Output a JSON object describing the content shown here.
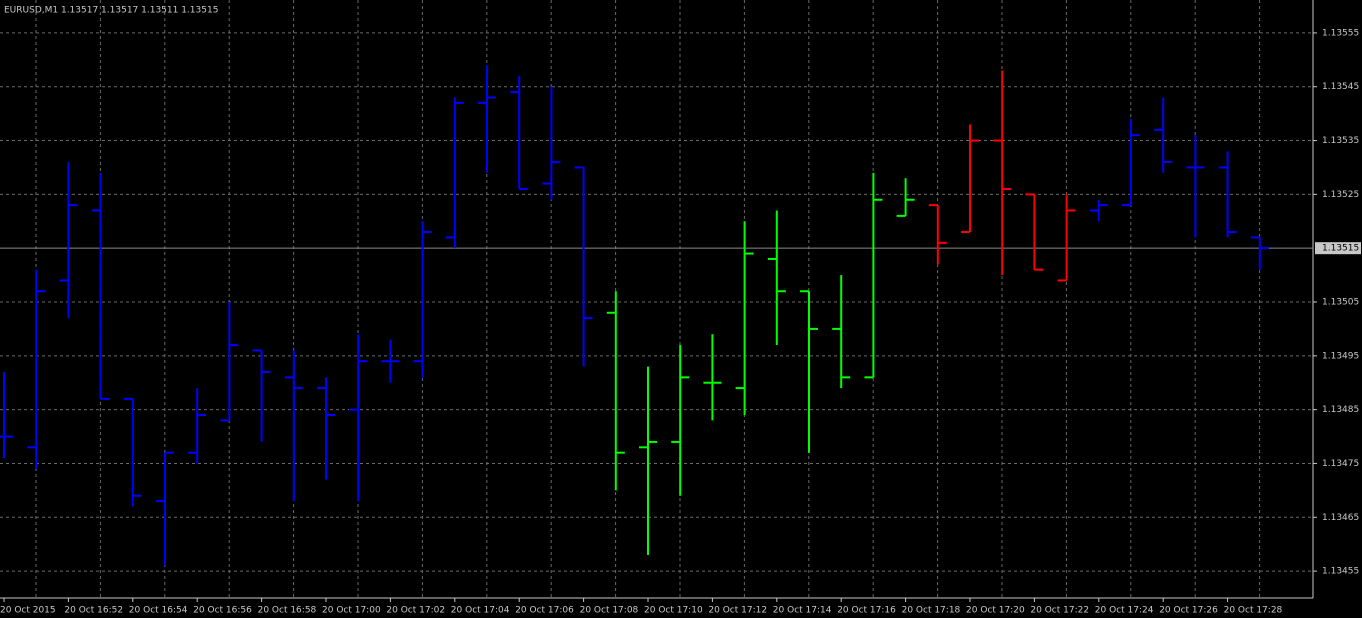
{
  "chart_data": {
    "type": "ohlc",
    "title": "EURUSD,M1  1.13517 1.13517 1.13511 1.13515",
    "categories": [
      "20 Oct 2015",
      null,
      "20 Oct 16:52",
      null,
      "20 Oct 16:54",
      null,
      "20 Oct 16:56",
      null,
      "20 Oct 16:58",
      null,
      "20 Oct 17:00",
      null,
      "20 Oct 17:02",
      null,
      "20 Oct 17:04",
      null,
      "20 Oct 17:06",
      null,
      "20 Oct 17:08",
      null,
      "20 Oct 17:10",
      null,
      "20 Oct 17:12",
      null,
      "20 Oct 17:14",
      null,
      "20 Oct 17:16",
      null,
      "20 Oct 17:18",
      null,
      "20 Oct 17:20",
      null,
      "20 Oct 17:22",
      null,
      "20 Oct 17:24",
      null,
      "20 Oct 17:26",
      null,
      "20 Oct 17:28",
      null
    ],
    "open": [
      1.1348,
      1.13478,
      1.13509,
      1.13522,
      1.13487,
      1.13468,
      1.13477,
      1.13483,
      1.13496,
      1.13491,
      1.13489,
      1.13485,
      1.13494,
      1.13494,
      1.13517,
      1.13542,
      1.13544,
      1.13527,
      1.1353,
      1.13503,
      1.13478,
      1.13479,
      1.1349,
      1.13489,
      1.13513,
      1.13507,
      1.135,
      1.13491,
      1.13521,
      1.13523,
      1.13518,
      1.13535,
      1.13525,
      1.13509,
      1.13522,
      1.13523,
      1.13537,
      1.1353,
      1.1353,
      1.13517
    ],
    "high": [
      1.13492,
      1.13511,
      1.13531,
      1.13529,
      1.13487,
      1.13477,
      1.13489,
      1.13505,
      1.13496,
      1.13496,
      1.13491,
      1.13499,
      1.13498,
      1.1352,
      1.13543,
      1.13549,
      1.13547,
      1.13545,
      1.1353,
      1.13507,
      1.13493,
      1.13497,
      1.13499,
      1.1352,
      1.13522,
      1.13507,
      1.1351,
      1.13529,
      1.13528,
      1.13523,
      1.13538,
      1.13548,
      1.13525,
      1.13525,
      1.13524,
      1.13539,
      1.13543,
      1.13536,
      1.13533,
      1.13517
    ],
    "low": [
      1.13476,
      1.13474,
      1.13502,
      1.13487,
      1.13467,
      1.13456,
      1.13475,
      1.13483,
      1.13479,
      1.13468,
      1.13472,
      1.13468,
      1.1349,
      1.13491,
      1.13515,
      1.13529,
      1.13526,
      1.13524,
      1.13493,
      1.1347,
      1.13458,
      1.13469,
      1.13483,
      1.13484,
      1.13497,
      1.13477,
      1.13489,
      1.13491,
      1.13521,
      1.13512,
      1.13518,
      1.1351,
      1.13511,
      1.13509,
      1.1352,
      1.13523,
      1.13529,
      1.13517,
      1.13517,
      1.13511
    ],
    "close": [
      1.1348,
      1.13507,
      1.13523,
      1.13487,
      1.13469,
      1.13477,
      1.13484,
      1.13497,
      1.13492,
      1.13489,
      1.13484,
      1.13494,
      1.13494,
      1.13518,
      1.13542,
      1.13543,
      1.13526,
      1.13531,
      1.13502,
      1.13477,
      1.13479,
      1.13491,
      1.1349,
      1.13514,
      1.13507,
      1.135,
      1.13491,
      1.13524,
      1.13524,
      1.13516,
      1.13535,
      1.13526,
      1.13511,
      1.13522,
      1.13523,
      1.13536,
      1.13531,
      1.1353,
      1.13518,
      1.13515
    ],
    "colors": [
      "#0000ff",
      "#0000ff",
      "#0000ff",
      "#0000ff",
      "#0000ff",
      "#0000ff",
      "#0000ff",
      "#0000ff",
      "#0000ff",
      "#0000ff",
      "#0000ff",
      "#0000ff",
      "#0000ff",
      "#0000ff",
      "#0000ff",
      "#0000ff",
      "#0000ff",
      "#0000ff",
      "#0000ff",
      "#00ff00",
      "#00ff00",
      "#00ff00",
      "#00ff00",
      "#00ff00",
      "#00ff00",
      "#00ff00",
      "#00ff00",
      "#00ff00",
      "#00ff00",
      "#ff0000",
      "#ff0000",
      "#ff0000",
      "#ff0000",
      "#ff0000",
      "#0000ff",
      "#0000ff",
      "#0000ff",
      "#0000ff",
      "#0000ff",
      "#0000ff"
    ],
    "ylim": [
      1.1345,
      1.1356
    ],
    "yticks": [
      1.13455,
      1.13465,
      1.13475,
      1.13485,
      1.13495,
      1.13505,
      1.13525,
      1.13535,
      1.13545,
      1.13555
    ],
    "grid": true,
    "current_price": 1.13515
  }
}
